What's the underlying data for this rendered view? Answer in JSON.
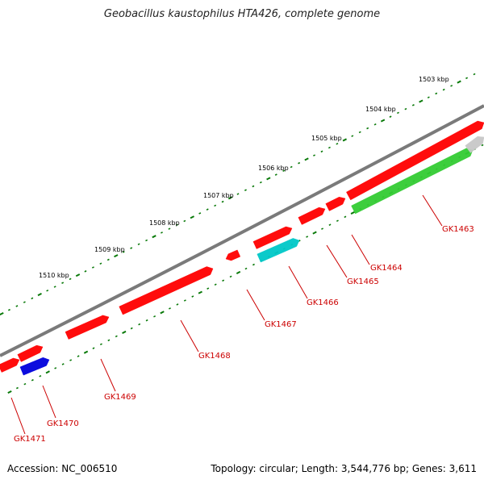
{
  "title": "Geobacillus kaustophilus HTA426, complete genome",
  "footer": {
    "accession": "Accession: NC_006510",
    "info": "Topology: circular; Length: 3,544,776 bp; Genes: 3,611"
  },
  "colors": {
    "backbone": "#7f7f7f",
    "tick": "#0a7a0a",
    "gene_red": "#ff0000",
    "gene_cyan": "#00c8c8",
    "gene_blue": "#0000dd",
    "gene_green": "#33cc33",
    "gene_grey": "#c8c8c8",
    "label": "#cc0000"
  },
  "kbp_labels": [
    "1503 kbp",
    "1504 kbp",
    "1505 kbp",
    "1506 kbp",
    "1507 kbp",
    "1508 kbp",
    "1509 kbp",
    "1510 kbp"
  ],
  "genes": [
    {
      "label": "GK1463"
    },
    {
      "label": "GK1464"
    },
    {
      "label": "GK1465"
    },
    {
      "label": "GK1466"
    },
    {
      "label": "GK1467"
    },
    {
      "label": "GK1468"
    },
    {
      "label": "GK1469"
    },
    {
      "label": "GK1470"
    },
    {
      "label": "GK1471"
    }
  ]
}
